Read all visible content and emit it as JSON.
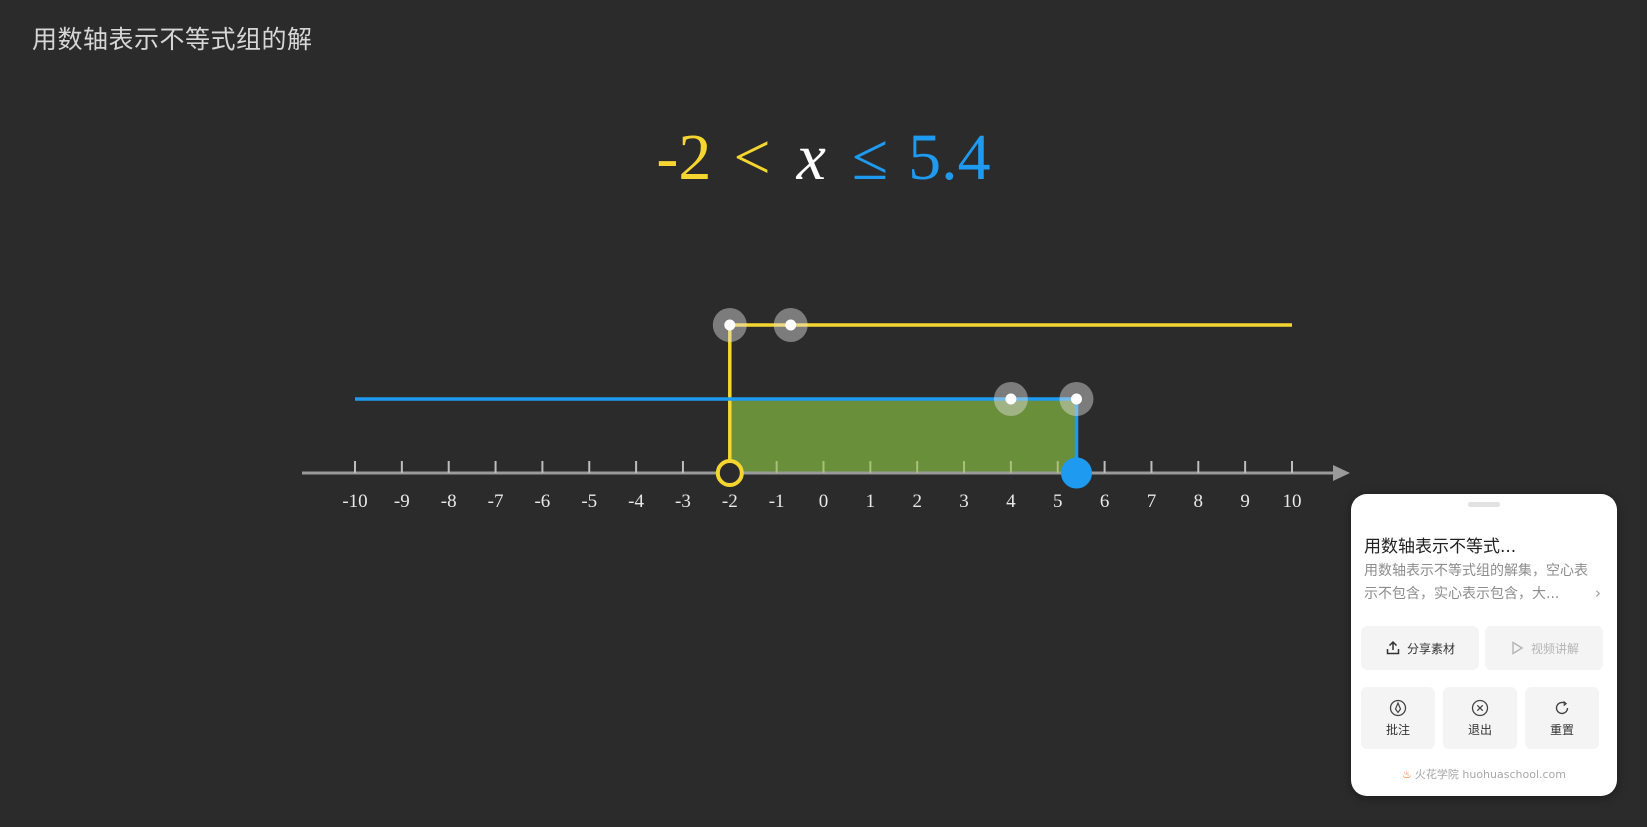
{
  "page": {
    "title": "用数轴表示不等式组的解"
  },
  "inequality": {
    "left_value": "-2",
    "left_symbol": "<",
    "variable": "x",
    "right_symbol": "≤",
    "right_value": "5.4",
    "left_color": "#f5d630",
    "variable_color": "#ffffff",
    "right_color": "#1e9bf0"
  },
  "number_line": {
    "min": -10,
    "max": 10,
    "tick_labels": [
      "-10",
      "-9",
      "-8",
      "-7",
      "-6",
      "-5",
      "-4",
      "-3",
      "-2",
      "-1",
      "0",
      "1",
      "2",
      "3",
      "4",
      "5",
      "6",
      "7",
      "8",
      "9",
      "10"
    ],
    "lower_bound": {
      "value": -2,
      "open": true,
      "color": "#f5d630",
      "direction": "right",
      "handle_value": -0.7
    },
    "upper_bound": {
      "value": 5.4,
      "open": false,
      "color": "#1e9bf0",
      "direction": "left",
      "handle_value": 4.0
    },
    "solution_fill_color": "#6a8f3a"
  },
  "panel": {
    "title": "用数轴表示不等式...",
    "description": "用数轴表示不等式组的解集，空心表示不包含，实心表示包含，大...",
    "share_label": "分享素材",
    "video_label": "视频讲解",
    "annotate_label": "批注",
    "exit_label": "退出",
    "reset_label": "重置",
    "footer": "火花学院 huohuaschool.com",
    "icons": {
      "share": "share-upload-icon",
      "video": "play-icon",
      "annotate": "pen-nib-icon",
      "exit": "close-circle-icon",
      "reset": "refresh-icon",
      "logo": "flame-logo-icon",
      "more": "chevron-right-icon"
    }
  }
}
